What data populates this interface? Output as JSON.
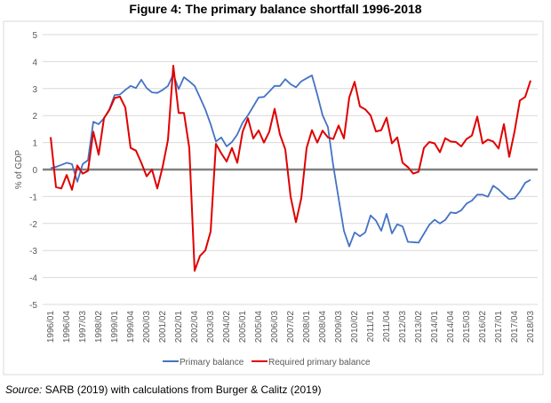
{
  "chart_data": {
    "type": "line",
    "title": "Figure 4: The primary balance shortfall 1996-2018",
    "ylabel": "% of GDP",
    "xlabel": "",
    "ylim": [
      -5,
      5
    ],
    "yticks": [
      5,
      4,
      3,
      2,
      1,
      0,
      -1,
      -2,
      -3,
      -4,
      -5
    ],
    "grid": true,
    "legend": "bottom",
    "x_start": "1996/01",
    "frequency": "quarterly",
    "tick_labels": [
      "1996/01",
      "1996/04",
      "1997/03",
      "1998/02",
      "1999/01",
      "1999/04",
      "2000/03",
      "2001/02",
      "2002/01",
      "2002/04",
      "2003/03",
      "2004/02",
      "2005/01",
      "2005/04",
      "2006/03",
      "2007/02",
      "2008/01",
      "2008/04",
      "2009/03",
      "2010/02",
      "2011/01",
      "2011/04",
      "2012/03",
      "2013/02",
      "2014/01",
      "2014/04",
      "2015/03",
      "2016/02",
      "2017/01",
      "2017/04",
      "2018/03"
    ],
    "series": [
      {
        "name": "Primary balance",
        "color": "#4472C4",
        "values": [
          0.05,
          0.1,
          0.17,
          0.25,
          0.2,
          -0.45,
          0.2,
          0.35,
          1.77,
          1.68,
          1.9,
          2.23,
          2.76,
          2.78,
          2.95,
          3.1,
          3.02,
          3.33,
          3.02,
          2.86,
          2.84,
          2.95,
          3.1,
          3.53,
          2.98,
          3.42,
          3.27,
          3.1,
          2.67,
          2.23,
          1.68,
          1.04,
          1.19,
          0.86,
          1.02,
          1.3,
          1.74,
          2.01,
          2.34,
          2.67,
          2.69,
          2.89,
          3.1,
          3.1,
          3.35,
          3.16,
          3.05,
          3.27,
          3.38,
          3.49,
          2.78,
          2.01,
          1.57,
          0.14,
          -1.07,
          -2.27,
          -2.85,
          -2.33,
          -2.47,
          -2.33,
          -1.7,
          -1.89,
          -2.27,
          -1.64,
          -2.37,
          -2.03,
          -2.11,
          -2.68,
          -2.69,
          -2.71,
          -2.38,
          -2.05,
          -1.86,
          -2.0,
          -1.87,
          -1.59,
          -1.62,
          -1.51,
          -1.26,
          -1.15,
          -0.93,
          -0.93,
          -1.01,
          -0.6,
          -0.74,
          -0.93,
          -1.1,
          -1.07,
          -0.82,
          -0.49,
          -0.38
        ]
      },
      {
        "name": "Required primary balance",
        "color": "#E00000",
        "values": [
          1.2,
          -0.65,
          -0.7,
          -0.2,
          -0.75,
          0.15,
          -0.15,
          -0.05,
          1.4,
          0.55,
          1.9,
          2.2,
          2.65,
          2.7,
          2.3,
          0.8,
          0.7,
          0.25,
          -0.25,
          0,
          -0.7,
          0.1,
          1.1,
          3.85,
          2.1,
          2.1,
          0.8,
          -3.75,
          -3.2,
          -3.0,
          -2.3,
          0.95,
          0.6,
          0.3,
          0.8,
          0.25,
          1.4,
          1.9,
          1.15,
          1.45,
          1.0,
          1.4,
          2.25,
          1.3,
          0.75,
          -1.0,
          -1.95,
          -1.07,
          0.8,
          1.46,
          1.0,
          1.44,
          1.19,
          1.13,
          1.63,
          1.15,
          2.67,
          3.25,
          2.34,
          2.23,
          2.01,
          1.41,
          1.46,
          1.92,
          0.97,
          1.19,
          0.25,
          0.09,
          -0.15,
          -0.08,
          0.8,
          1.02,
          0.97,
          0.64,
          1.16,
          1.04,
          1.02,
          0.86,
          1.13,
          1.26,
          1.96,
          0.97,
          1.11,
          1.04,
          0.78,
          1.68,
          0.47,
          1.41,
          2.56,
          2.69,
          3.3
        ]
      }
    ]
  },
  "source": {
    "label": "Source:",
    "text": " SARB (2019) with calculations from Burger & Calitz (2019)"
  }
}
